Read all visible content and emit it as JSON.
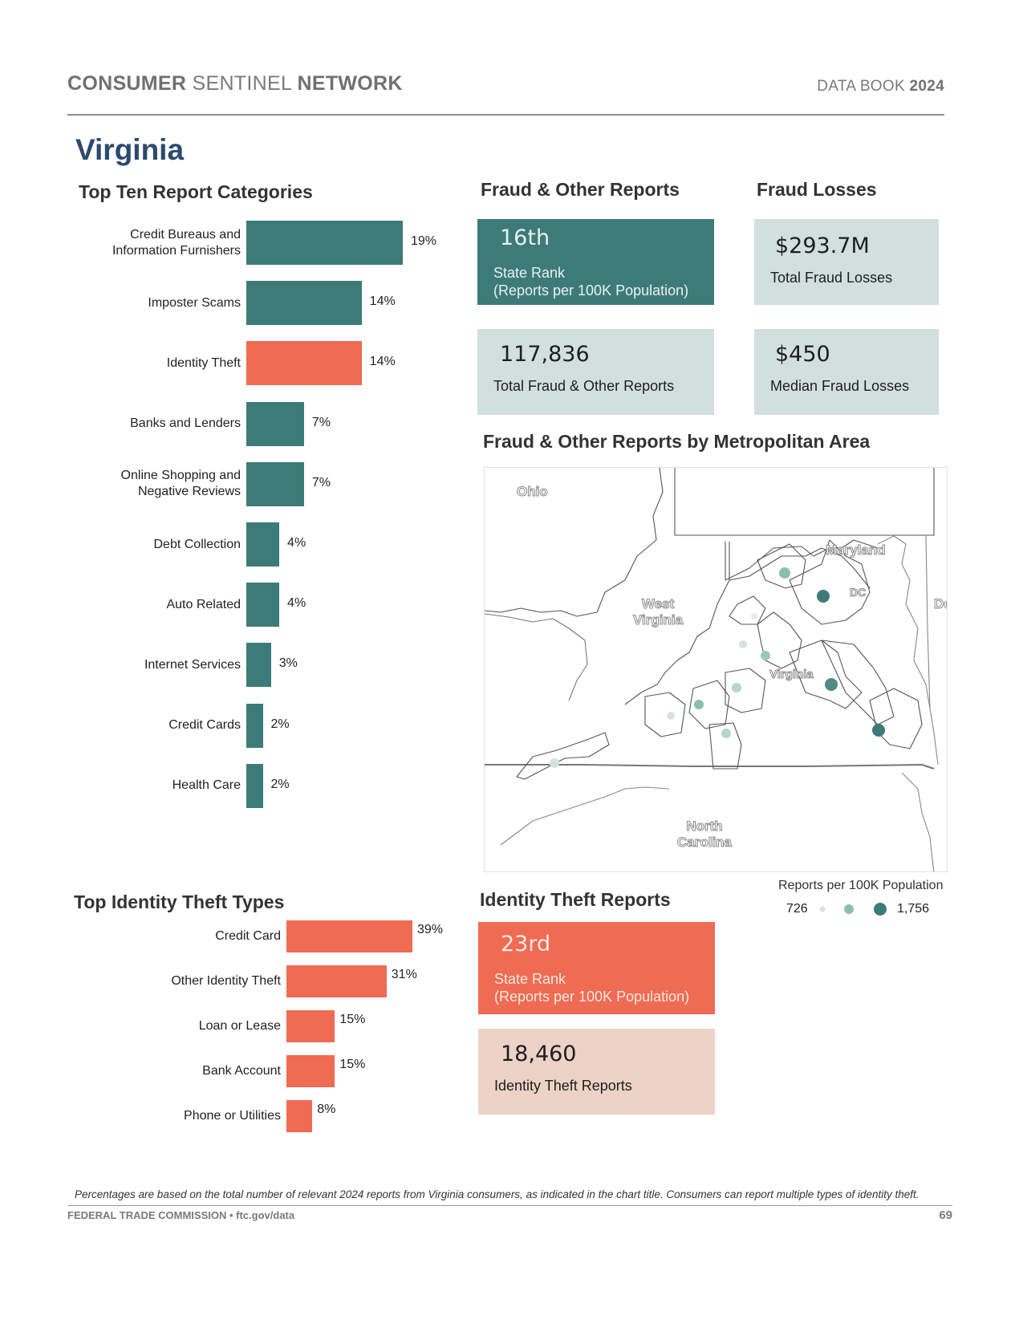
{
  "header": {
    "title_part1": "CONSUMER",
    "title_part2": "SENTINEL",
    "title_part3": "NETWORK",
    "databook_label": "DATA BOOK",
    "databook_year": "2024"
  },
  "state": "Virginia",
  "top_ten": {
    "title": "Top Ten Report Categories",
    "chart_data": {
      "type": "bar",
      "orientation": "horizontal",
      "categories": [
        "Credit Bureaus and Information Furnishers",
        "Imposter Scams",
        "Identity Theft",
        "Banks and Lenders",
        "Online Shopping and Negative Reviews",
        "Debt Collection",
        "Auto Related",
        "Internet Services",
        "Credit Cards",
        "Health Care"
      ],
      "label_lines": [
        [
          "Credit Bureaus and",
          "Information Furnishers"
        ],
        [
          "Imposter Scams"
        ],
        [
          "Identity Theft"
        ],
        [
          "Banks and Lenders"
        ],
        [
          "Online Shopping and",
          "Negative Reviews"
        ],
        [
          "Debt Collection"
        ],
        [
          "Auto Related"
        ],
        [
          "Internet Services"
        ],
        [
          "Credit Cards"
        ],
        [
          "Health Care"
        ]
      ],
      "values": [
        19,
        14,
        14,
        7,
        7,
        4,
        4,
        3,
        2,
        2
      ],
      "value_labels": [
        "19%",
        "14%",
        "14%",
        "7%",
        "7%",
        "4%",
        "4%",
        "3%",
        "2%",
        "2%"
      ],
      "highlight_index": 2,
      "colors": {
        "default": "#3d7b79",
        "highlight": "#ef6b53"
      }
    }
  },
  "fraud_reports": {
    "title": "Fraud & Other Reports",
    "rank": "16th",
    "rank_label1": "State Rank",
    "rank_label2": "(Reports per 100K Population)",
    "total": "117,836",
    "total_label": "Total Fraud & Other Reports"
  },
  "fraud_losses": {
    "title": "Fraud Losses",
    "total": "$293.7M",
    "total_label": "Total Fraud Losses",
    "median": "$450",
    "median_label": "Median Fraud Losses"
  },
  "map": {
    "title": "Fraud & Other Reports by Metropolitan Area",
    "labels": {
      "ohio": "Ohio",
      "west_virginia_1": "West",
      "west_virginia_2": "Virginia",
      "maryland": "Maryland",
      "dc": "DC",
      "de": "De",
      "virginia": "Virginia",
      "nc_1": "North",
      "nc_2": "Carolina"
    },
    "legend_title": "Reports per 100K Population",
    "legend_min": "726",
    "legend_max": "1,756",
    "dot_colors": {
      "low": "#d5e3df",
      "mid": "#8bbdb6",
      "high": "#3d7b79"
    }
  },
  "id_theft_types": {
    "title": "Top Identity Theft Types",
    "chart_data": {
      "type": "bar",
      "orientation": "horizontal",
      "categories": [
        "Credit Card",
        "Other Identity Theft",
        "Loan or Lease",
        "Bank Account",
        "Phone or Utilities"
      ],
      "values": [
        39,
        31,
        15,
        15,
        8
      ],
      "value_labels": [
        "39%",
        "31%",
        "15%",
        "15%",
        "8%"
      ],
      "color": "#ef6b53"
    }
  },
  "id_theft_reports": {
    "title": "Identity Theft Reports",
    "rank": "23rd",
    "rank_label1": "State Rank",
    "rank_label2": "(Reports per 100K Population)",
    "total": "18,460",
    "total_label": "Identity Theft Reports"
  },
  "footer": {
    "note": "Percentages are based on the total number of relevant 2024 reports from Virginia consumers, as indicated in the chart title.  Consumers can report multiple types of identity theft.",
    "source": "FEDERAL TRADE COMMISSION • ftc.gov/data",
    "page": "69"
  }
}
